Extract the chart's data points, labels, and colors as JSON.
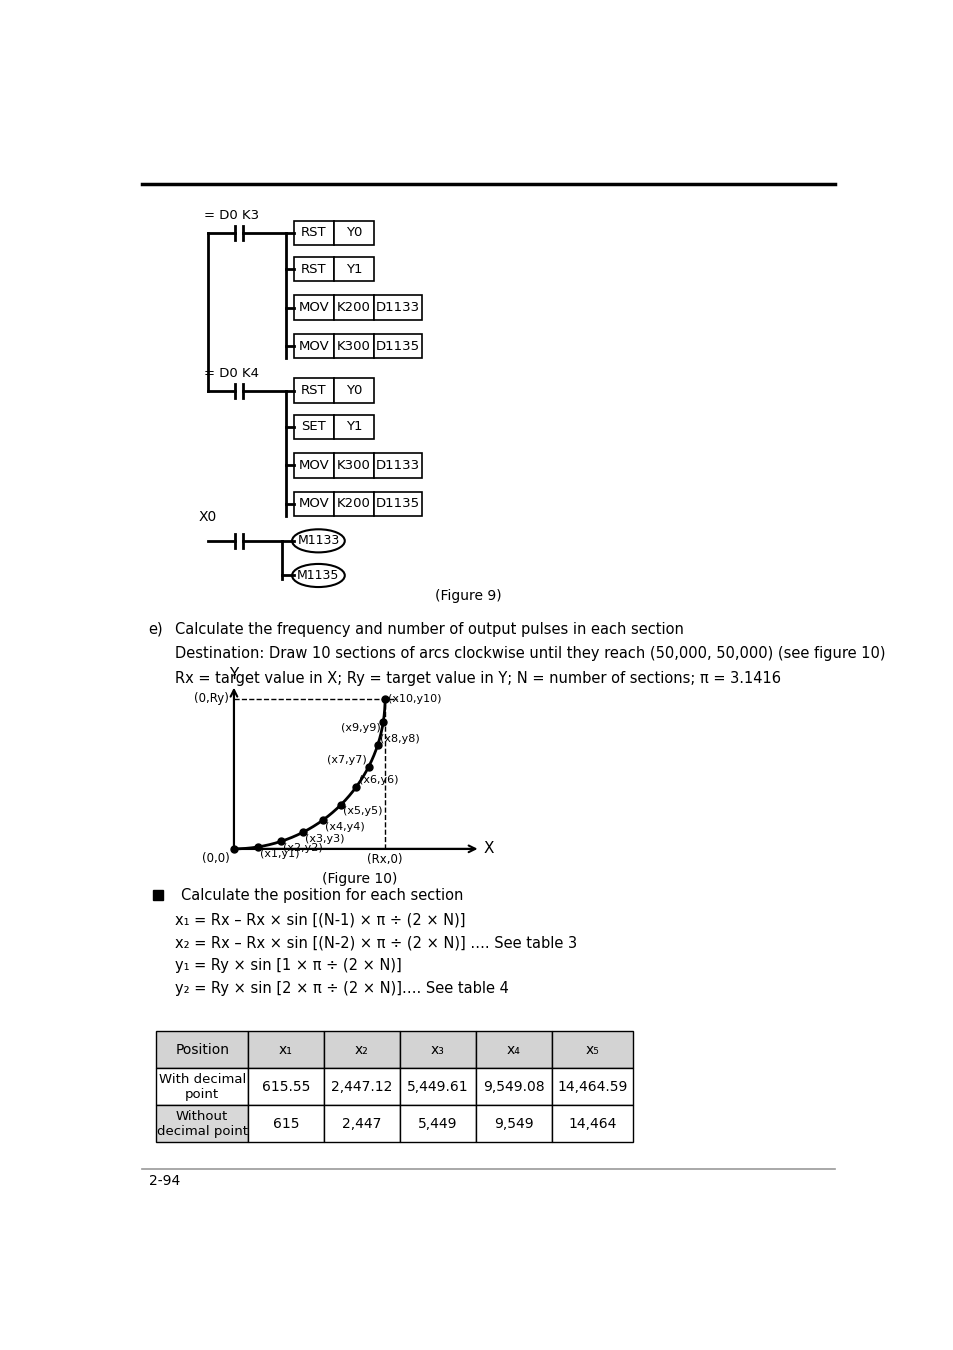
{
  "page_number": "2-94",
  "ladder": {
    "contact1_label": "= D0 K3",
    "contact2_label": "= D0 K4",
    "row1_boxes": [
      [
        "RST",
        "Y0"
      ],
      [
        "RST",
        "Y1"
      ],
      [
        "MOV",
        "K200",
        "D1133"
      ],
      [
        "MOV",
        "K300",
        "D1135"
      ]
    ],
    "row2_boxes": [
      [
        "RST",
        "Y0"
      ],
      [
        "SET",
        "Y1"
      ],
      [
        "MOV",
        "K300",
        "D1133"
      ],
      [
        "MOV",
        "K200",
        "D1135"
      ]
    ],
    "coils": [
      "M1133",
      "M1135"
    ],
    "figure_label": "(Figure 9)"
  },
  "section_e": {
    "letter": "e)",
    "line1": "Calculate the frequency and number of output pulses in each section",
    "line2": "Destination: Draw 10 sections of arcs clockwise until they reach (50,000, 50,000) (see figure 10)",
    "line3": "Rx = target value in X; Ry = target value in Y; N = number of sections; π = 3.1416"
  },
  "figure10_label": "(Figure 10)",
  "bullet_text": "Calculate the position for each section",
  "formulas": [
    "x₁ = Rx – Rx × sin [(N-1) × π ÷ (2 × N)]",
    "x₂ = Rx – Rx × sin [(N-2) × π ÷ (2 × N)] …. See table 3",
    "y₁ = Ry × sin [1 × π ÷ (2 × N)]",
    "y₂ = Ry × sin [2 × π ÷ (2 × N)]…. See table 4"
  ],
  "table_headers": [
    "Position",
    "x₁",
    "x₂",
    "x₃",
    "x₄",
    "x₅"
  ],
  "row1_label": "With decimal\npoint",
  "row1_values": [
    "615.55",
    "2,447.12",
    "5,449.61",
    "9,549.08",
    "14,464.59"
  ],
  "row2_label": "Without\ndecimal point",
  "row2_values": [
    "615",
    "2,447",
    "5,449",
    "9,549",
    "14,464"
  ]
}
